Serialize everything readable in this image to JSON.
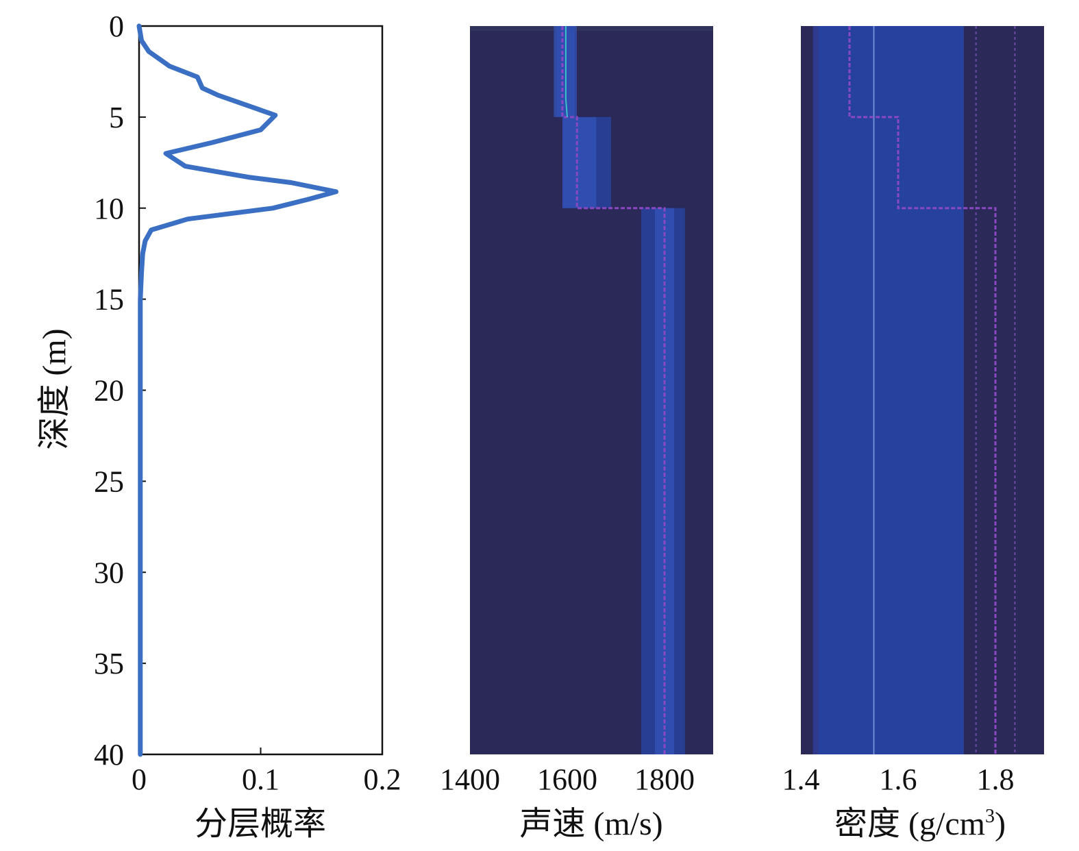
{
  "chart_data": [
    {
      "type": "line",
      "xlabel": "分层概率",
      "ylabel": "深度 (m)",
      "xlim": [
        0,
        0.2
      ],
      "ylim": [
        0,
        40
      ],
      "x_ticks": [
        "0",
        "0.1",
        "0.2"
      ],
      "y_ticks": [
        "0",
        "5",
        "10",
        "15",
        "20",
        "25",
        "30",
        "35",
        "40"
      ],
      "line_color": "#3a6fc4",
      "grid": false,
      "series": [
        {
          "depth": [
            0,
            0.8,
            1.4,
            2.2,
            2.8,
            3.4,
            3.8,
            4.5,
            4.9,
            5.7,
            6.4,
            7.0,
            7.7,
            8.3,
            8.6,
            9.1,
            9.5,
            10.0,
            10.6,
            11.2,
            11.8,
            12.5,
            13.5,
            15,
            20,
            25,
            30,
            35,
            40
          ],
          "probability": [
            0.0,
            0.002,
            0.008,
            0.025,
            0.048,
            0.052,
            0.065,
            0.095,
            0.112,
            0.1,
            0.06,
            0.022,
            0.038,
            0.09,
            0.125,
            0.162,
            0.14,
            0.11,
            0.04,
            0.01,
            0.005,
            0.003,
            0.002,
            0.001,
            0.001,
            0.001,
            0.001,
            0.001,
            0.001
          ]
        }
      ]
    },
    {
      "type": "heatmap",
      "xlabel": "声速 (m/s)",
      "xlim": [
        1400,
        1900
      ],
      "ylim": [
        0,
        40
      ],
      "x_ticks": [
        "1400",
        "1600",
        "1800"
      ],
      "colors": {
        "background": "#2b2958",
        "low": "#2f3a8c",
        "mid": "#27429e",
        "high": "#3355bb",
        "true_profile": "#8a48c2",
        "mean_profile": "#3bc0c8",
        "top_band": "#30345a"
      },
      "layers": [
        {
          "depth_top": 0,
          "depth_bottom": 5,
          "speed_top": 1592,
          "speed_bottom": 1600,
          "spread": [
            1578,
            1615
          ]
        },
        {
          "depth_top": 5,
          "depth_bottom": 10,
          "speed_top": 1610,
          "speed_bottom": 1640,
          "spread": [
            1590,
            1690
          ]
        },
        {
          "depth_top": 10,
          "depth_bottom": 40,
          "speed_top": 1800,
          "speed_bottom": 1800,
          "spread": [
            1752,
            1842
          ]
        }
      ],
      "true_profile": {
        "depth": [
          0,
          5,
          5,
          10,
          10,
          40
        ],
        "speed": [
          1590,
          1590,
          1620,
          1620,
          1800,
          1800
        ]
      },
      "mean_profile": {
        "depth": [
          0,
          4,
          5
        ],
        "speed": [
          1597,
          1597,
          1600
        ]
      }
    },
    {
      "type": "heatmap",
      "xlabel": "密度 (g/cm",
      "xlabel_superscript": "3",
      "xlabel_suffix": ")",
      "xlim": [
        1.4,
        1.9
      ],
      "ylim": [
        0,
        40
      ],
      "x_ticks": [
        "1.4",
        "1.6",
        "1.8"
      ],
      "colors": {
        "background": "#2b2958",
        "band": "#27429e",
        "edge": "#2f3a8c",
        "true_profile": "#8a48c2",
        "mean_profile": "#6d8fd8",
        "guide_line": "#6b4aa8"
      },
      "band": [
        1.425,
        1.735
      ],
      "mean_profile": {
        "depth": [
          0,
          40
        ],
        "density": [
          1.55,
          1.55
        ]
      },
      "true_profile": {
        "depth": [
          0,
          5,
          5,
          10,
          10,
          40
        ],
        "density": [
          1.5,
          1.5,
          1.6,
          1.6,
          1.8,
          1.8
        ]
      },
      "guide_lines": [
        1.76,
        1.84
      ]
    }
  ]
}
